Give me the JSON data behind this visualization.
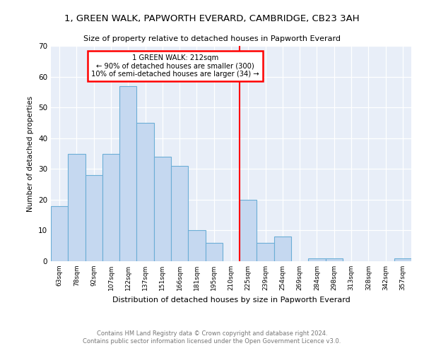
{
  "title1": "1, GREEN WALK, PAPWORTH EVERARD, CAMBRIDGE, CB23 3AH",
  "title2": "Size of property relative to detached houses in Papworth Everard",
  "xlabel": "Distribution of detached houses by size in Papworth Everard",
  "ylabel": "Number of detached properties",
  "footnote": "Contains HM Land Registry data © Crown copyright and database right 2024.\nContains public sector information licensed under the Open Government Licence v3.0.",
  "categories": [
    "63sqm",
    "78sqm",
    "92sqm",
    "107sqm",
    "122sqm",
    "137sqm",
    "151sqm",
    "166sqm",
    "181sqm",
    "195sqm",
    "210sqm",
    "225sqm",
    "239sqm",
    "254sqm",
    "269sqm",
    "284sqm",
    "298sqm",
    "313sqm",
    "328sqm",
    "342sqm",
    "357sqm"
  ],
  "values": [
    18,
    35,
    28,
    35,
    57,
    45,
    34,
    31,
    10,
    6,
    0,
    20,
    6,
    8,
    0,
    1,
    1,
    0,
    0,
    0,
    1
  ],
  "bar_color": "#c5d8f0",
  "bar_edge_color": "#6baed6",
  "annotation_line1": "1 GREEN WALK: 212sqm",
  "annotation_line2": "← 90% of detached houses are smaller (300)",
  "annotation_line3": "10% of semi-detached houses are larger (34) →",
  "vline_x_index": 10.5,
  "ylim": [
    0,
    70
  ],
  "yticks": [
    0,
    10,
    20,
    30,
    40,
    50,
    60,
    70
  ],
  "background_color": "#e8eef8"
}
